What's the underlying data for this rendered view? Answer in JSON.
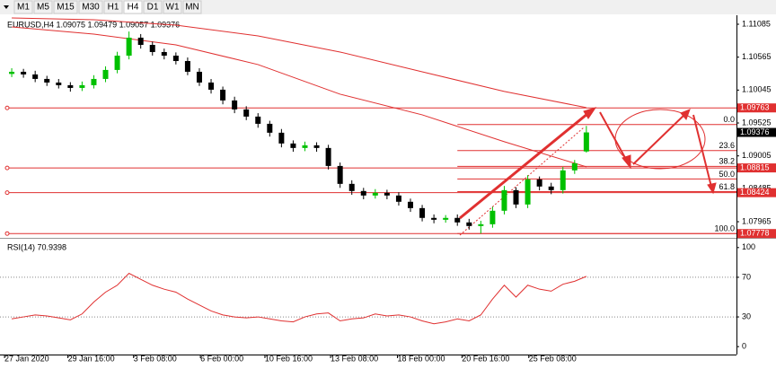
{
  "toolbar": [
    "M1",
    "M5",
    "M15",
    "M30",
    "H1",
    "H4",
    "D1",
    "W1",
    "MN"
  ],
  "chart_data": [
    {
      "type": "candlestick",
      "title": "EURUSD,H4  1.09075 1.09479 1.09057 1.09376",
      "up_color": "#00c000",
      "down_color": "#000000",
      "xlim": [
        -1,
        61.8
      ],
      "ylim": [
        1.0771,
        1.11227
      ],
      "xticks": [
        {
          "value": 0,
          "label": "27 Jan 2020"
        },
        {
          "value": 5.4,
          "label": "29 Jan 16:00"
        },
        {
          "value": 11,
          "label": "3 Feb 08:00"
        },
        {
          "value": 16.7,
          "label": "6 Feb 00:00"
        },
        {
          "value": 22.2,
          "label": "10 Feb 16:00"
        },
        {
          "value": 27.8,
          "label": "13 Feb 08:00"
        },
        {
          "value": 33.5,
          "label": "18 Feb 00:00"
        },
        {
          "value": 39,
          "label": "20 Feb 16:00"
        },
        {
          "value": 44.7,
          "label": "25 Feb 08:00"
        }
      ],
      "yticks": [
        1.07965,
        1.08485,
        1.09005,
        1.09525,
        1.10045,
        1.10565,
        1.11085
      ],
      "open": [
        1.103,
        1.10334,
        1.10292,
        1.10221,
        1.10164,
        1.10122,
        1.10079,
        1.10122,
        1.10221,
        1.10363,
        1.10589,
        1.10873,
        1.10759,
        1.10646,
        1.10589,
        1.10504,
        1.10334,
        1.10164,
        1.10051,
        1.09881,
        1.09739,
        1.09626,
        1.09512,
        1.09371,
        1.09201,
        1.0913,
        1.09172,
        1.0913,
        1.08846,
        1.08563,
        1.0845,
        1.08379,
        1.08421,
        1.08379,
        1.0828,
        1.0818,
        1.08025,
        1.07996,
        1.08025,
        1.07954,
        1.07897,
        1.07925,
        1.08138,
        1.08464,
        1.08237,
        1.08634,
        1.08521,
        1.08464,
        1.08776,
        1.09075
      ],
      "high": [
        1.1039,
        1.1038,
        1.1035,
        1.1027,
        1.1022,
        1.1017,
        1.1018,
        1.1028,
        1.1042,
        1.1065,
        1.1097,
        1.1093,
        1.1081,
        1.107,
        1.1064,
        1.1056,
        1.1039,
        1.1022,
        1.101,
        1.0994,
        1.0979,
        1.0968,
        1.0956,
        1.0943,
        1.0925,
        1.0923,
        1.0922,
        1.0918,
        1.089,
        1.0862,
        1.085,
        1.0848,
        1.0847,
        1.0843,
        1.0833,
        1.0823,
        1.0808,
        1.0807,
        1.0808,
        1.0801,
        1.0798,
        1.082,
        1.0853,
        1.0851,
        1.087,
        1.0868,
        1.0858,
        1.0883,
        1.0894,
        1.09479
      ],
      "low": [
        1.1025,
        1.1024,
        1.1017,
        1.1011,
        1.1007,
        1.1002,
        1.1003,
        1.1007,
        1.1017,
        1.1031,
        1.1053,
        1.107,
        1.1059,
        1.1053,
        1.1045,
        1.1028,
        1.1011,
        1.0999,
        1.0982,
        1.0968,
        1.0957,
        1.0945,
        1.0931,
        1.0914,
        1.0907,
        1.0908,
        1.0907,
        1.0879,
        1.085,
        1.0839,
        1.0832,
        1.0833,
        1.0832,
        1.0822,
        1.0812,
        1.0797,
        1.0794,
        1.0795,
        1.079,
        1.0784,
        1.07778,
        1.0787,
        1.0808,
        1.0818,
        1.0818,
        1.0846,
        1.084,
        1.0841,
        1.0872,
        1.09057
      ],
      "close": [
        1.10334,
        1.10292,
        1.10221,
        1.10164,
        1.10122,
        1.10079,
        1.10122,
        1.10221,
        1.10363,
        1.10589,
        1.10873,
        1.10759,
        1.10646,
        1.10589,
        1.10504,
        1.10334,
        1.10164,
        1.10051,
        1.09881,
        1.09739,
        1.09626,
        1.09512,
        1.09371,
        1.09201,
        1.0913,
        1.09172,
        1.0913,
        1.08846,
        1.08563,
        1.0845,
        1.08379,
        1.08421,
        1.08379,
        1.0828,
        1.0818,
        1.08025,
        1.07996,
        1.08025,
        1.07954,
        1.07897,
        1.07925,
        1.08138,
        1.08464,
        1.08237,
        1.08634,
        1.08521,
        1.08464,
        1.08776,
        1.08889,
        1.09376
      ],
      "moving_averages": [
        {
          "color": "#e03030",
          "x": [
            0,
            7,
            14,
            21,
            28,
            35,
            42,
            49
          ],
          "values": [
            1.11184,
            1.11156,
            1.11071,
            1.10901,
            1.10646,
            1.10334,
            1.10023,
            1.09768
          ]
        },
        {
          "color": "#e03030",
          "x": [
            0,
            7,
            14,
            21,
            28,
            35,
            42,
            49
          ],
          "values": [
            1.11043,
            1.10929,
            1.10759,
            1.10448,
            1.0998,
            1.09654,
            1.09229,
            1.08832
          ]
        }
      ],
      "levels": [
        {
          "value": 1.09763,
          "label": "1.09763"
        },
        {
          "value": 1.08815,
          "label": "1.08815"
        },
        {
          "value": 1.08424,
          "label": "1.08424"
        },
        {
          "value": 1.07778,
          "label": "1.07778"
        }
      ],
      "level_color": "#e03030",
      "current": {
        "value": 1.09376,
        "label": "1.09376"
      },
      "fib": {
        "start": 38,
        "labels": [
          "0.0",
          "23.6",
          "38.2",
          "50.0",
          "61.8",
          "100.0"
        ],
        "values": [
          1.095,
          1.0909,
          1.0884,
          1.0864,
          1.0844,
          1.07778
        ]
      }
    },
    {
      "type": "line",
      "title": "RSI(14) 70.9398",
      "color": "#e03030",
      "ylim": [
        -8,
        108
      ],
      "yticks": [
        0,
        30,
        70,
        100
      ],
      "levels": [
        30,
        70
      ],
      "values": [
        28,
        30,
        32,
        31,
        29,
        27,
        33,
        45,
        55,
        62,
        74,
        68,
        62,
        58,
        55,
        48,
        42,
        36,
        32,
        30,
        29,
        30,
        28,
        26,
        25,
        30,
        33,
        34,
        26,
        28,
        29,
        33,
        31,
        32,
        30,
        26,
        23,
        25,
        28,
        26,
        32,
        48,
        62,
        50,
        62,
        58,
        56,
        63,
        66,
        70.9398
      ]
    }
  ]
}
